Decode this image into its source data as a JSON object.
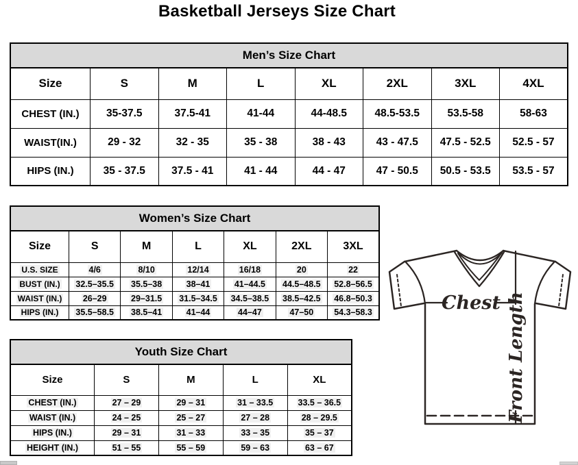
{
  "page": {
    "title": "Basketball Jerseys Size Chart"
  },
  "tables": {
    "mens": {
      "title": "Men’s Size Chart",
      "columns": [
        "Size",
        "S",
        "M",
        "L",
        "XL",
        "2XL",
        "3XL",
        "4XL"
      ],
      "rows": [
        {
          "label": "CHEST (IN.)",
          "values": [
            "35-37.5",
            "37.5-41",
            "41-44",
            "44-48.5",
            "48.5-53.5",
            "53.5-58",
            "58-63"
          ]
        },
        {
          "label": "WAIST(IN.)",
          "values": [
            "29 - 32",
            "32 - 35",
            "35 - 38",
            "38 - 43",
            "43 - 47.5",
            "47.5 - 52.5",
            "52.5 - 57"
          ]
        },
        {
          "label": "HIPS (IN.)",
          "values": [
            "35 - 37.5",
            "37.5 - 41",
            "41 - 44",
            "44 - 47",
            "47 - 50.5",
            "50.5 - 53.5",
            "53.5 - 57"
          ]
        }
      ]
    },
    "womens": {
      "title": "Women’s Size Chart",
      "columns": [
        "Size",
        "S",
        "M",
        "L",
        "XL",
        "2XL",
        "3XL"
      ],
      "rows": [
        {
          "label": "U.S. SIZE",
          "values": [
            "4/6",
            "8/10",
            "12/14",
            "16/18",
            "20",
            "22"
          ]
        },
        {
          "label": "BUST (IN.)",
          "values": [
            "32.5–35.5",
            "35.5–38",
            "38–41",
            "41–44.5",
            "44.5–48.5",
            "52.8–56.5"
          ]
        },
        {
          "label": "WAIST (IN.)",
          "values": [
            "26–29",
            "29–31.5",
            "31.5–34.5",
            "34.5–38.5",
            "38.5–42.5",
            "46.8–50.3"
          ]
        },
        {
          "label": "HIPS (IN.)",
          "values": [
            "35.5–58.5",
            "38.5–41",
            "41–44",
            "44–47",
            "47–50",
            "54.3–58.3"
          ]
        }
      ]
    },
    "youth": {
      "title": "Youth Size Chart",
      "columns": [
        "Size",
        "S",
        "M",
        "L",
        "XL"
      ],
      "rows": [
        {
          "label": "CHEST (IN.)",
          "values": [
            "27 – 29",
            "29 – 31",
            "31 – 33.5",
            "33.5 – 36.5"
          ]
        },
        {
          "label": "WAIST (IN.)",
          "values": [
            "24 – 25",
            "25 – 27",
            "27 – 28",
            "28 – 29.5"
          ]
        },
        {
          "label": "HIPS (IN.)",
          "values": [
            "29 – 31",
            "31 – 33",
            "33 – 35",
            "35 – 37"
          ]
        },
        {
          "label": "HEIGHT (IN.)",
          "values": [
            "51 – 55",
            "55 – 59",
            "59 – 63",
            "63 – 67"
          ]
        }
      ]
    }
  },
  "diagram": {
    "chest_label": "Chest",
    "front_length_label": "Front Length"
  },
  "colors": {
    "section_header_bg": "#d9d9d9",
    "table_border": "#000000",
    "diagram_ink": "#2b2523",
    "value_highlight": "#f0f0f0",
    "scrollbar_fragment": "#c9c9c9"
  }
}
